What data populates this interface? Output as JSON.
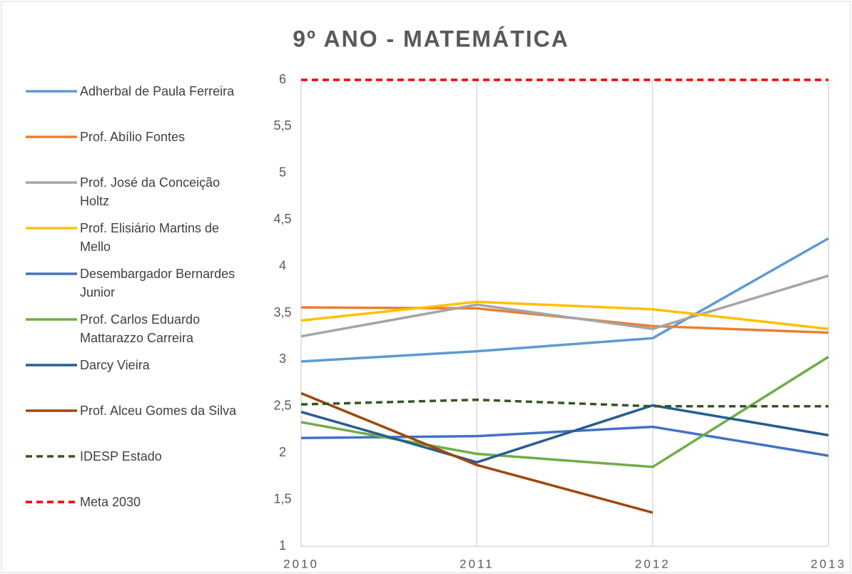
{
  "chart_data": {
    "type": "line",
    "title": "9º ANO - MATEMÁTICA",
    "categories": [
      "2010",
      "2011",
      "2012",
      "2013"
    ],
    "ylim": [
      1,
      6
    ],
    "yticks": [
      1,
      {
        "value": 1.5,
        "label": "1,5"
      },
      2,
      {
        "value": 2.5,
        "label": "2,5"
      },
      3,
      {
        "value": 3.5,
        "label": "3,5"
      },
      4,
      {
        "value": 4.5,
        "label": "4,5"
      },
      5,
      {
        "value": 5.5,
        "label": "5,5"
      },
      6
    ],
    "grid": "x",
    "legend": "left",
    "series": [
      {
        "name": "Adherbal de Paula Ferreira",
        "color": "#5b9bd5",
        "values": [
          2.98,
          3.09,
          3.23,
          4.3
        ]
      },
      {
        "name": "Prof. Abílio Fontes",
        "color": "#ed7d31",
        "values": [
          3.56,
          3.55,
          3.36,
          3.29
        ]
      },
      {
        "name": "Prof. José da Conceição Holtz",
        "color": "#a5a5a5",
        "values": [
          3.25,
          3.59,
          3.33,
          3.9
        ]
      },
      {
        "name": "Prof. Elisiário Martins de Mello",
        "color": "#ffc000",
        "values": [
          3.42,
          3.62,
          3.54,
          3.33
        ]
      },
      {
        "name": "Desembargador Bernardes Junior",
        "color": "#4472c4",
        "values": [
          2.16,
          2.18,
          2.28,
          1.97
        ]
      },
      {
        "name": "Prof. Carlos Eduardo Mattarazzo Carreira",
        "color": "#70ad47",
        "values": [
          2.33,
          1.99,
          1.85,
          3.03
        ]
      },
      {
        "name": "Darcy Vieira",
        "color": "#255e91",
        "values": [
          2.44,
          1.9,
          2.51,
          2.19
        ]
      },
      {
        "name": "Prof. Alceu Gomes da Silva",
        "color": "#9e480e",
        "values": [
          2.64,
          1.87,
          1.36,
          null
        ]
      },
      {
        "name": "IDESP Estado",
        "color": "#375623",
        "dashed": true,
        "values": [
          2.52,
          2.57,
          2.5,
          2.5
        ]
      },
      {
        "name": "Meta 2030",
        "color": "#ff0000",
        "dashed": true,
        "values": [
          6,
          6,
          6,
          6
        ]
      }
    ]
  }
}
